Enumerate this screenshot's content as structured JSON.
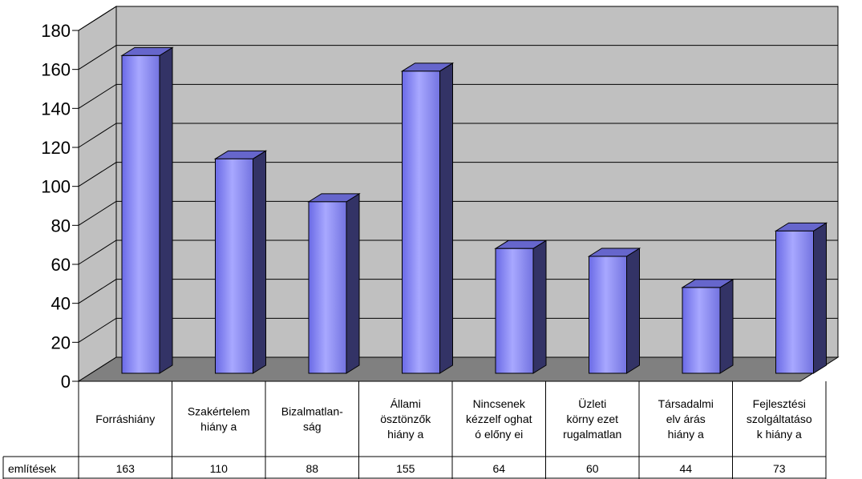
{
  "chart_data": {
    "type": "bar",
    "categories": [
      [
        "Forráshiány"
      ],
      [
        "Szakértelem",
        "hiány a"
      ],
      [
        "Bizalmatlan-",
        "ság"
      ],
      [
        "Állami",
        "ösztönzők",
        "hiány a"
      ],
      [
        "Nincsenek",
        "kézzelf oghat",
        "ó előny ei"
      ],
      [
        "Üzleti",
        "körny ezet",
        "rugalmatlan"
      ],
      [
        "Társadalmi",
        "elv árás",
        "hiány a"
      ],
      [
        "Fejlesztési",
        "szolgáltatáso",
        "k hiány a"
      ]
    ],
    "series": [
      {
        "name": "említések",
        "values": [
          163,
          110,
          88,
          155,
          64,
          60,
          44,
          73
        ]
      }
    ],
    "yticks": [
      "0",
      "20",
      "40",
      "60",
      "80",
      "100",
      "120",
      "140",
      "160",
      "180"
    ],
    "ylim": [
      0,
      180
    ],
    "grid": true,
    "legend": "table-below",
    "colors": {
      "bar_front": "#9999ff",
      "bar_side": "#333366",
      "bar_top": "#6666cc",
      "back_wall": "#c0c0c0",
      "floor": "#808080",
      "grid": "#000000"
    }
  }
}
